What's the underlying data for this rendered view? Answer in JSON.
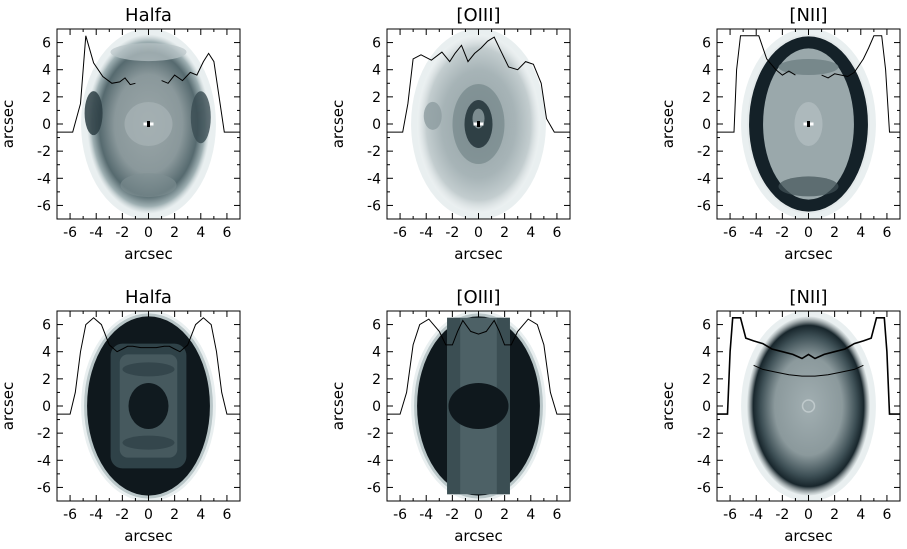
{
  "chart_data": [
    {
      "type": "heatmap",
      "title": "Halfa",
      "xlabel": "arcsec",
      "ylabel": "arcsec",
      "xlim": [
        -7,
        7
      ],
      "ylim": [
        -7,
        7
      ],
      "xticks": [
        "-6",
        "-4",
        "-2",
        "0",
        "2",
        "4",
        "6"
      ],
      "yticks": [
        "6",
        "4",
        "2",
        "0",
        "-2",
        "-4",
        "-6"
      ],
      "image": "observed",
      "profile": {
        "x": [
          -7,
          -5.8,
          -5.2,
          -4.8,
          -4.2,
          -3.5,
          -2.8,
          -2.2,
          -1.8,
          -1.4,
          -1.0
        ],
        "y": [
          -0.6,
          -0.6,
          1.5,
          6.5,
          4.5,
          3.5,
          3.0,
          3.1,
          3.4,
          2.9,
          3.0
        ]
      },
      "profile2": {
        "x": [
          1.0,
          1.5,
          2.0,
          2.6,
          3.2,
          3.7,
          4.2,
          4.6,
          5.0,
          5.4,
          5.8,
          6.5,
          7.0
        ],
        "y": [
          3.2,
          3.0,
          3.6,
          3.2,
          3.8,
          3.6,
          4.6,
          5.2,
          4.6,
          2.0,
          -0.6,
          -0.6,
          -0.6
        ]
      }
    },
    {
      "type": "heatmap",
      "title": "[OIII]",
      "xlabel": "arcsec",
      "ylabel": "arcsec",
      "xlim": [
        -7,
        7
      ],
      "ylim": [
        -7,
        7
      ],
      "xticks": [
        "-6",
        "-4",
        "-2",
        "0",
        "2",
        "4",
        "6"
      ],
      "yticks": [
        "6",
        "4",
        "2",
        "0",
        "-2",
        "-4",
        "-6"
      ],
      "image": "observed-oiii",
      "profile": {
        "x": [
          -7,
          -5.8,
          -5.4,
          -5.0,
          -4.4,
          -3.6,
          -2.8,
          -2.2,
          -1.8,
          -1.3,
          -0.8,
          -0.3,
          0.2,
          0.7,
          1.2,
          1.7,
          2.3,
          3.0,
          3.6,
          4.2,
          4.8,
          5.2,
          5.8,
          7.0
        ],
        "y": [
          -0.6,
          -0.6,
          1.5,
          4.8,
          5.1,
          4.7,
          5.3,
          4.6,
          5.2,
          5.8,
          4.6,
          5.2,
          5.6,
          6.1,
          6.4,
          5.4,
          4.2,
          4.0,
          4.6,
          4.4,
          3.0,
          0.4,
          -0.6,
          -0.6
        ]
      }
    },
    {
      "type": "heatmap",
      "title": "[NII]",
      "xlabel": "arcsec",
      "ylabel": "arcsec",
      "xlim": [
        -7,
        7
      ],
      "ylim": [
        -7,
        7
      ],
      "xticks": [
        "-6",
        "-4",
        "-2",
        "0",
        "2",
        "4",
        "6"
      ],
      "yticks": [
        "6",
        "4",
        "2",
        "0",
        "-2",
        "-4",
        "-6"
      ],
      "image": "observed-nii",
      "profile": {
        "x": [
          -7,
          -5.7,
          -5.5,
          -5.2,
          -3.8,
          -3.2,
          -2.5,
          -2.0,
          -1.5,
          -1.0
        ],
        "y": [
          -0.6,
          -0.6,
          4.0,
          6.5,
          6.5,
          4.8,
          4.0,
          3.6,
          3.9,
          3.6
        ]
      },
      "profile2": {
        "x": [
          1.0,
          1.5,
          2.0,
          2.5,
          3.0,
          3.5,
          4.2,
          4.6,
          5.0,
          5.6,
          5.9,
          6.2,
          7.0
        ],
        "y": [
          3.6,
          3.4,
          3.7,
          3.6,
          3.5,
          3.8,
          4.8,
          5.6,
          6.5,
          6.5,
          4.0,
          -0.6,
          -0.6
        ]
      }
    },
    {
      "type": "heatmap",
      "title": "Halfa",
      "xlabel": "arcsec",
      "ylabel": "arcsec",
      "xlim": [
        -7,
        7
      ],
      "ylim": [
        -7,
        7
      ],
      "xticks": [
        "-6",
        "-4",
        "-2",
        "0",
        "2",
        "4",
        "6"
      ],
      "yticks": [
        "6",
        "4",
        "2",
        "0",
        "-2",
        "-4",
        "-6"
      ],
      "image": "model-halfa",
      "profile": {
        "x": [
          -7,
          -6,
          -5.6,
          -5.2,
          -4.8,
          -4.2,
          -3.6,
          -3.0,
          -2.4,
          -2.0,
          -1.6,
          -1.2,
          -0.6,
          0,
          0.6,
          1.2,
          1.6,
          2.0,
          2.4,
          3.0,
          3.6,
          4.2,
          4.8,
          5.2,
          5.6,
          6.0,
          7.0
        ],
        "y": [
          -0.6,
          -0.6,
          1.0,
          4.0,
          6.0,
          6.5,
          6.0,
          4.5,
          4.0,
          4.2,
          4.4,
          4.4,
          4.3,
          4.3,
          4.3,
          4.4,
          4.4,
          4.2,
          4.0,
          4.5,
          6.0,
          6.5,
          6.0,
          4.0,
          1.0,
          -0.6,
          -0.6
        ]
      }
    },
    {
      "type": "heatmap",
      "title": "[OIII]",
      "xlabel": "arcsec",
      "ylabel": "arcsec",
      "xlim": [
        -7,
        7
      ],
      "ylim": [
        -7,
        7
      ],
      "xticks": [
        "-6",
        "-4",
        "-2",
        "0",
        "2",
        "4",
        "6"
      ],
      "yticks": [
        "6",
        "4",
        "2",
        "0",
        "-2",
        "-4",
        "-6"
      ],
      "image": "model-oiii",
      "profile": {
        "x": [
          -7,
          -6,
          -5.5,
          -5.0,
          -4.5,
          -3.8,
          -3.0,
          -2.5,
          -2.0,
          -1.6,
          -1.2,
          -0.6,
          0,
          0.6,
          1.2,
          1.6,
          2.0,
          2.5,
          3.0,
          3.8,
          4.5,
          5.0,
          5.5,
          6.0,
          7.0
        ],
        "y": [
          -0.6,
          -0.6,
          1.0,
          4.5,
          6.0,
          6.4,
          5.5,
          4.5,
          4.5,
          5.5,
          6.3,
          5.5,
          5.3,
          5.5,
          6.3,
          5.5,
          4.5,
          4.5,
          5.5,
          6.4,
          6.0,
          4.5,
          1.0,
          -0.6,
          -0.6
        ]
      }
    },
    {
      "type": "heatmap",
      "title": "[NII]",
      "xlabel": "arcsec",
      "ylabel": "arcsec",
      "xlim": [
        -7,
        7
      ],
      "ylim": [
        -7,
        7
      ],
      "xticks": [
        "-6",
        "-4",
        "-2",
        "0",
        "2",
        "4",
        "6"
      ],
      "yticks": [
        "6",
        "4",
        "2",
        "0",
        "-2",
        "-4",
        "-6"
      ],
      "image": "model-nii",
      "profile": {
        "x": [
          -7,
          -6.2,
          -6.0,
          -5.8,
          -5.2,
          -4.8,
          -4.2,
          -3.5,
          -2.8,
          -2.0,
          -1.2,
          -0.5,
          0,
          0.5,
          1.2,
          2.0,
          2.8,
          3.5,
          4.2,
          4.8,
          5.2,
          5.8,
          6.0,
          6.2,
          7.0
        ],
        "y": [
          -0.6,
          -0.6,
          4.0,
          6.5,
          6.5,
          5.0,
          4.8,
          4.6,
          4.2,
          4.0,
          3.8,
          3.5,
          3.8,
          3.5,
          3.8,
          4.0,
          4.2,
          4.6,
          4.8,
          5.0,
          6.5,
          6.5,
          4.0,
          -0.6,
          -0.6
        ]
      },
      "profile2": {
        "x": [
          -4.2,
          -3.5,
          -2.5,
          -1.5,
          -0.5,
          0,
          0.5,
          1.5,
          2.5,
          3.5,
          4.2
        ],
        "y": [
          3.0,
          2.7,
          2.5,
          2.3,
          2.2,
          2.2,
          2.2,
          2.3,
          2.5,
          2.7,
          3.0
        ]
      }
    }
  ]
}
